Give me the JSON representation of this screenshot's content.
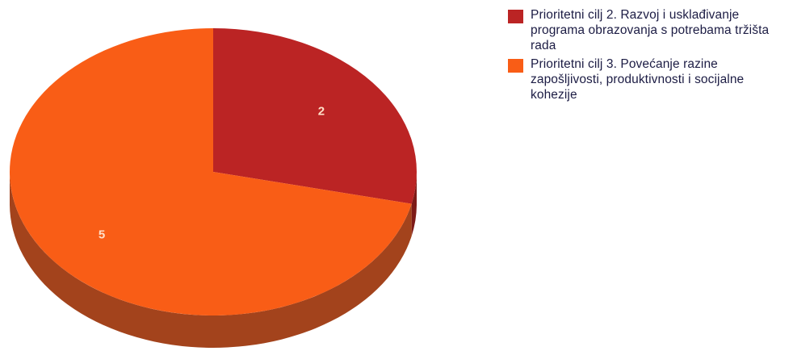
{
  "chart_data": {
    "type": "pie",
    "categories": [
      "Prioritetni cilj 2. Razvoj i usklađivanje programa obrazovanja s potrebama tržišta rada",
      "Prioritetni cilj 3. Povećanje razine zapošljivosti, produktivnosti i socijalne kohezije"
    ],
    "values": [
      2,
      5
    ],
    "data_labels": [
      "2",
      "5"
    ],
    "colors": [
      "#bb2424",
      "#f95d16"
    ],
    "side_colors": [
      "#7e1b18",
      "#a3431c"
    ],
    "legend_position": "right",
    "style": "3d"
  },
  "legend": {
    "items": [
      {
        "label": "Prioritetni cilj 2. Razvoj i usklađivanje programa obrazovanja s potrebama tržišta rada",
        "color": "#bb2424"
      },
      {
        "label": "Prioritetni cilj 3. Povećanje razine zapošljivosti, produktivnosti i socijalne kohezije",
        "color": "#f95d16"
      }
    ]
  }
}
